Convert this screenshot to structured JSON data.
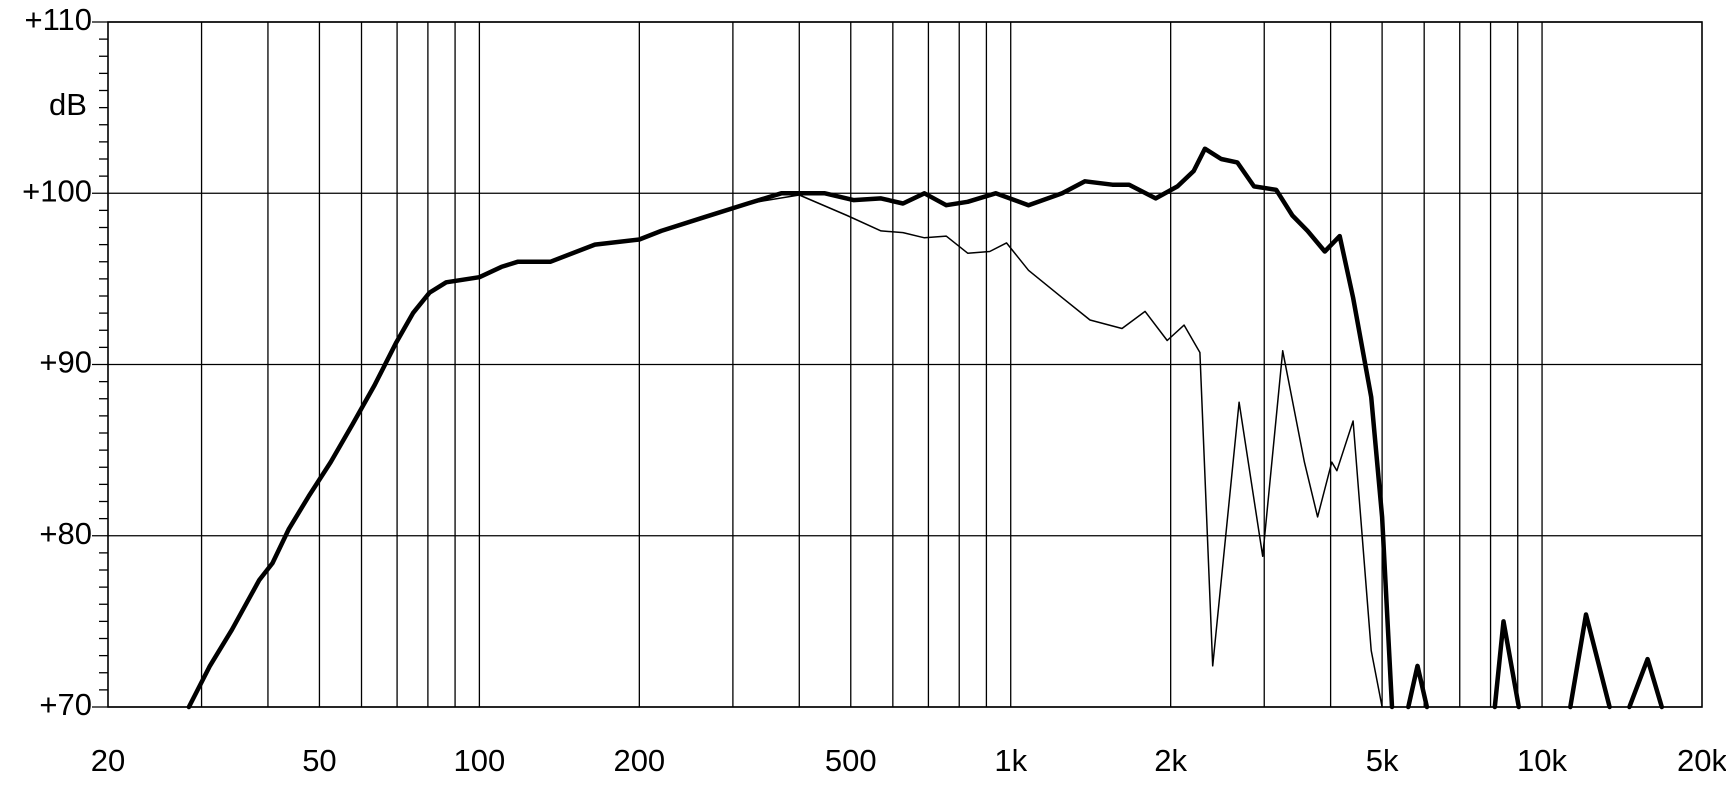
{
  "chart_data": {
    "type": "line",
    "y_unit_label": "dB",
    "xscale": "log",
    "xlim": [
      20,
      20000
    ],
    "ylim": [
      70,
      110
    ],
    "xticks": [
      20,
      50,
      100,
      200,
      500,
      {
        "value": 1000,
        "label": "1k"
      },
      {
        "value": 2000,
        "label": "2k"
      },
      {
        "value": 5000,
        "label": "5k"
      },
      {
        "value": 10000,
        "label": "10k"
      },
      {
        "value": 20000,
        "label": "20k"
      }
    ],
    "xgrid": [
      30,
      40,
      50,
      60,
      70,
      80,
      90,
      100,
      200,
      300,
      400,
      500,
      600,
      700,
      800,
      900,
      1000,
      2000,
      3000,
      4000,
      5000,
      6000,
      7000,
      8000,
      9000,
      10000
    ],
    "yticks": [
      {
        "value": 70,
        "label": "+70"
      },
      {
        "value": 80,
        "label": "+80"
      },
      {
        "value": 90,
        "label": "+90"
      },
      {
        "value": 100,
        "label": "+100"
      },
      {
        "value": 110,
        "label": "+110"
      }
    ],
    "yminorticks": [
      71,
      72,
      73,
      74,
      75,
      76,
      77,
      78,
      79,
      81,
      82,
      83,
      84,
      85,
      86,
      87,
      88,
      89,
      91,
      92,
      93,
      94,
      95,
      96,
      97,
      98,
      99,
      101,
      102,
      103,
      104,
      105,
      106,
      107,
      108,
      109
    ],
    "grid": true,
    "series": [
      {
        "color": "#000000",
        "width": 4.5,
        "x": [
          28.4,
          31.1,
          34.2,
          38.5,
          40.8,
          43.8,
          47.7,
          52.5,
          57.7,
          63.5,
          69.8,
          75,
          80.6,
          86.6,
          100,
          110,
          118,
          136,
          165,
          200,
          220,
          265,
          320,
          370,
          447,
          506,
          570,
          627,
          688,
          756,
          830,
          937,
          1080,
          1250,
          1380,
          1554,
          1670,
          1874,
          2060,
          2210,
          2320,
          2490,
          2670,
          2870,
          3160,
          3390,
          3620,
          3900,
          4160,
          4410,
          4770,
          5000,
          5220,
          null,
          5600,
          5830,
          6070,
          null,
          8150,
          8460,
          9040,
          null,
          11300,
          12100,
          13400,
          null,
          14600,
          15800,
          16800
        ],
        "values": [
          70,
          72.4,
          74.5,
          77.4,
          78.4,
          80.4,
          82.3,
          84.3,
          86.5,
          88.8,
          91.3,
          93.0,
          94.2,
          94.8,
          95.1,
          95.7,
          96.0,
          96.0,
          97.0,
          97.3,
          97.8,
          98.6,
          99.4,
          100.0,
          100.0,
          99.6,
          99.7,
          99.4,
          100.0,
          99.3,
          99.5,
          100.0,
          99.3,
          100.0,
          100.7,
          100.5,
          100.5,
          99.7,
          100.4,
          101.3,
          102.6,
          102.0,
          101.8,
          100.4,
          100.2,
          98.7,
          97.8,
          96.6,
          97.5,
          93.9,
          88.1,
          81.1,
          70,
          null,
          70,
          72.4,
          70,
          null,
          70,
          75.0,
          70,
          null,
          70,
          75.4,
          70,
          null,
          70,
          72.8,
          70
        ]
      },
      {
        "color": "#000000",
        "width": 1.5,
        "x": [
          320,
          400,
          492,
          570,
          627,
          688,
          756,
          830,
          913,
          982,
          1080,
          1250,
          1410,
          1620,
          1790,
          1970,
          2120,
          2270,
          2400,
          2690,
          2980,
          3250,
          3570,
          3780,
          4020,
          4110,
          4410,
          4770,
          5000
        ],
        "values": [
          99.4,
          99.9,
          98.7,
          97.8,
          97.7,
          97.4,
          97.5,
          96.5,
          96.6,
          97.1,
          95.5,
          93.9,
          92.6,
          92.1,
          93.1,
          91.4,
          92.3,
          90.7,
          72.4,
          87.8,
          78.8,
          90.8,
          84.3,
          81.1,
          84.3,
          83.8,
          86.7,
          73.3,
          70
        ]
      }
    ]
  }
}
